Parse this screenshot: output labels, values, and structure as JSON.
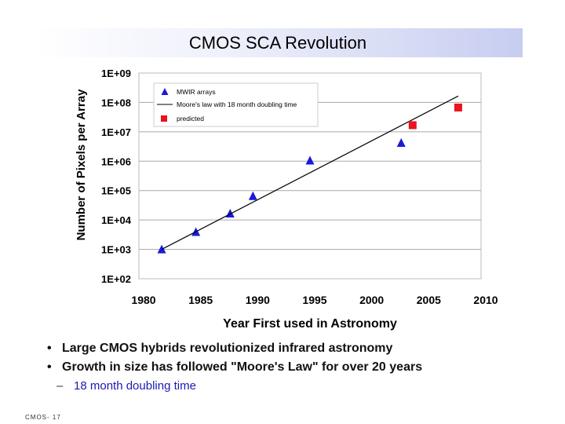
{
  "slide": {
    "title": "CMOS SCA Revolution",
    "footer": "CMOS- 17",
    "bullets": [
      "Large CMOS hybrids revolutionized infrared astronomy",
      "Growth in size has followed \"Moore's Law\" for over 20 years"
    ],
    "sub_bullet": "18 month doubling time",
    "bullet_glyph": "•",
    "dash_glyph": "–"
  },
  "chart_data": {
    "type": "scatter",
    "title": "",
    "xlabel": "Year First used in Astronomy",
    "ylabel": "Number of Pixels per Array",
    "y_scale": "log",
    "xlim": [
      1980,
      2010
    ],
    "ylim_exp": [
      2,
      9
    ],
    "x_ticks": [
      "1980",
      "1985",
      "1990",
      "1995",
      "2000",
      "2005",
      "2010"
    ],
    "y_ticks": [
      "1E+02",
      "1E+03",
      "1E+04",
      "1E+05",
      "1E+06",
      "1E+07",
      "1E+08",
      "1E+09"
    ],
    "grid": true,
    "legend_position": "top-left",
    "series": [
      {
        "name": "MWIR arrays",
        "marker": "triangle",
        "color": "#1a1adb",
        "points": [
          {
            "x": 1982,
            "y": 1000
          },
          {
            "x": 1985,
            "y": 3900
          },
          {
            "x": 1988,
            "y": 16500
          },
          {
            "x": 1990,
            "y": 65000
          },
          {
            "x": 1995,
            "y": 1050000
          },
          {
            "x": 2003,
            "y": 4200000
          }
        ]
      },
      {
        "name": "Moore's law with 18 month doubling time",
        "marker": "line",
        "color": "#000000",
        "points": [
          {
            "x": 1982,
            "y": 1000
          },
          {
            "x": 2008,
            "y": 165000000
          }
        ]
      },
      {
        "name": "predicted",
        "marker": "square",
        "color": "#e8141e",
        "points": [
          {
            "x": 2004,
            "y": 16800000
          },
          {
            "x": 2008,
            "y": 67000000
          }
        ]
      }
    ]
  }
}
